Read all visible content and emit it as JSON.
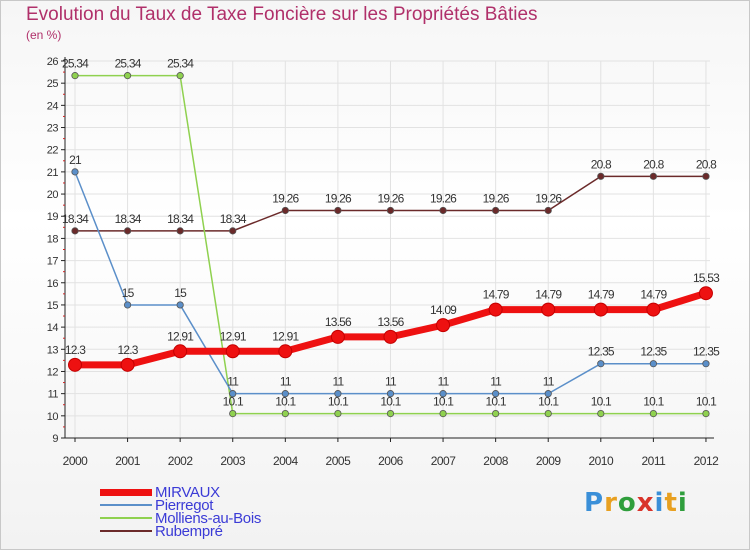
{
  "page": {
    "title": "Evolution du Taux de Taxe Foncière sur les Propriétés Bâties",
    "unit": "(en %)",
    "brand": "Proxiti"
  },
  "chart_data": {
    "type": "line",
    "title": "Evolution du Taux de Taxe Foncière sur les Propriétés Bâties",
    "ylabel": "(en %)",
    "xlabel": "",
    "ylim": [
      9,
      26
    ],
    "yticks": [
      9,
      10,
      11,
      12,
      13,
      14,
      15,
      16,
      17,
      18,
      19,
      20,
      21,
      22,
      23,
      24,
      25,
      26
    ],
    "categories": [
      "2000",
      "2001",
      "2002",
      "2003",
      "2004",
      "2005",
      "2006",
      "2007",
      "2008",
      "2009",
      "2010",
      "2011",
      "2012"
    ],
    "grid": true,
    "legend_position": "bottom-left",
    "series": [
      {
        "name": "Rubempré",
        "color": "#6b2a2a",
        "values": [
          18.34,
          18.34,
          18.34,
          18.34,
          19.26,
          19.26,
          19.26,
          19.26,
          19.26,
          19.26,
          20.8,
          20.8,
          20.8
        ],
        "labels": [
          "18.34",
          "18.34",
          "18.34",
          "18.34",
          "19.26",
          "19.26",
          "19.26",
          "19.26",
          "19.26",
          "19.26",
          "20.8",
          "20.8",
          "20.8"
        ]
      },
      {
        "name": "Molliens-au-Bois",
        "color": "#8fd14f",
        "values": [
          25.34,
          25.34,
          25.34,
          10.1,
          10.1,
          10.1,
          10.1,
          10.1,
          10.1,
          10.1,
          10.1,
          10.1,
          10.1
        ],
        "labels": [
          "25.34",
          "25.34",
          "25.34",
          "10.1",
          "10.1",
          "10.1",
          "10.1",
          "10.1",
          "10.1",
          "10.1",
          "10.1",
          "10.1",
          "10.1"
        ]
      },
      {
        "name": "Pierregot",
        "color": "#5b8fc9",
        "values": [
          21,
          15,
          15,
          11,
          11,
          11,
          11,
          11,
          11,
          11,
          12.35,
          12.35,
          12.35
        ],
        "labels": [
          "21",
          "15",
          "15",
          "11",
          "11",
          "11",
          "11",
          "11",
          "11",
          "11",
          "12.35",
          "12.35",
          "12.35"
        ]
      },
      {
        "name": "MIRVAUX",
        "color": "#ee1111",
        "values": [
          12.3,
          12.3,
          12.91,
          12.91,
          12.91,
          13.56,
          13.56,
          14.09,
          14.79,
          14.79,
          14.79,
          14.79,
          15.53
        ],
        "labels": [
          "12.3",
          "12.3",
          "12.91",
          "12.91",
          "12.91",
          "13.56",
          "13.56",
          "14.09",
          "14.79",
          "14.79",
          "14.79",
          "14.79",
          "15.53"
        ]
      }
    ],
    "legend": [
      "MIRVAUX",
      "Pierregot",
      "Molliens-au-Bois",
      "Rubempré"
    ]
  }
}
